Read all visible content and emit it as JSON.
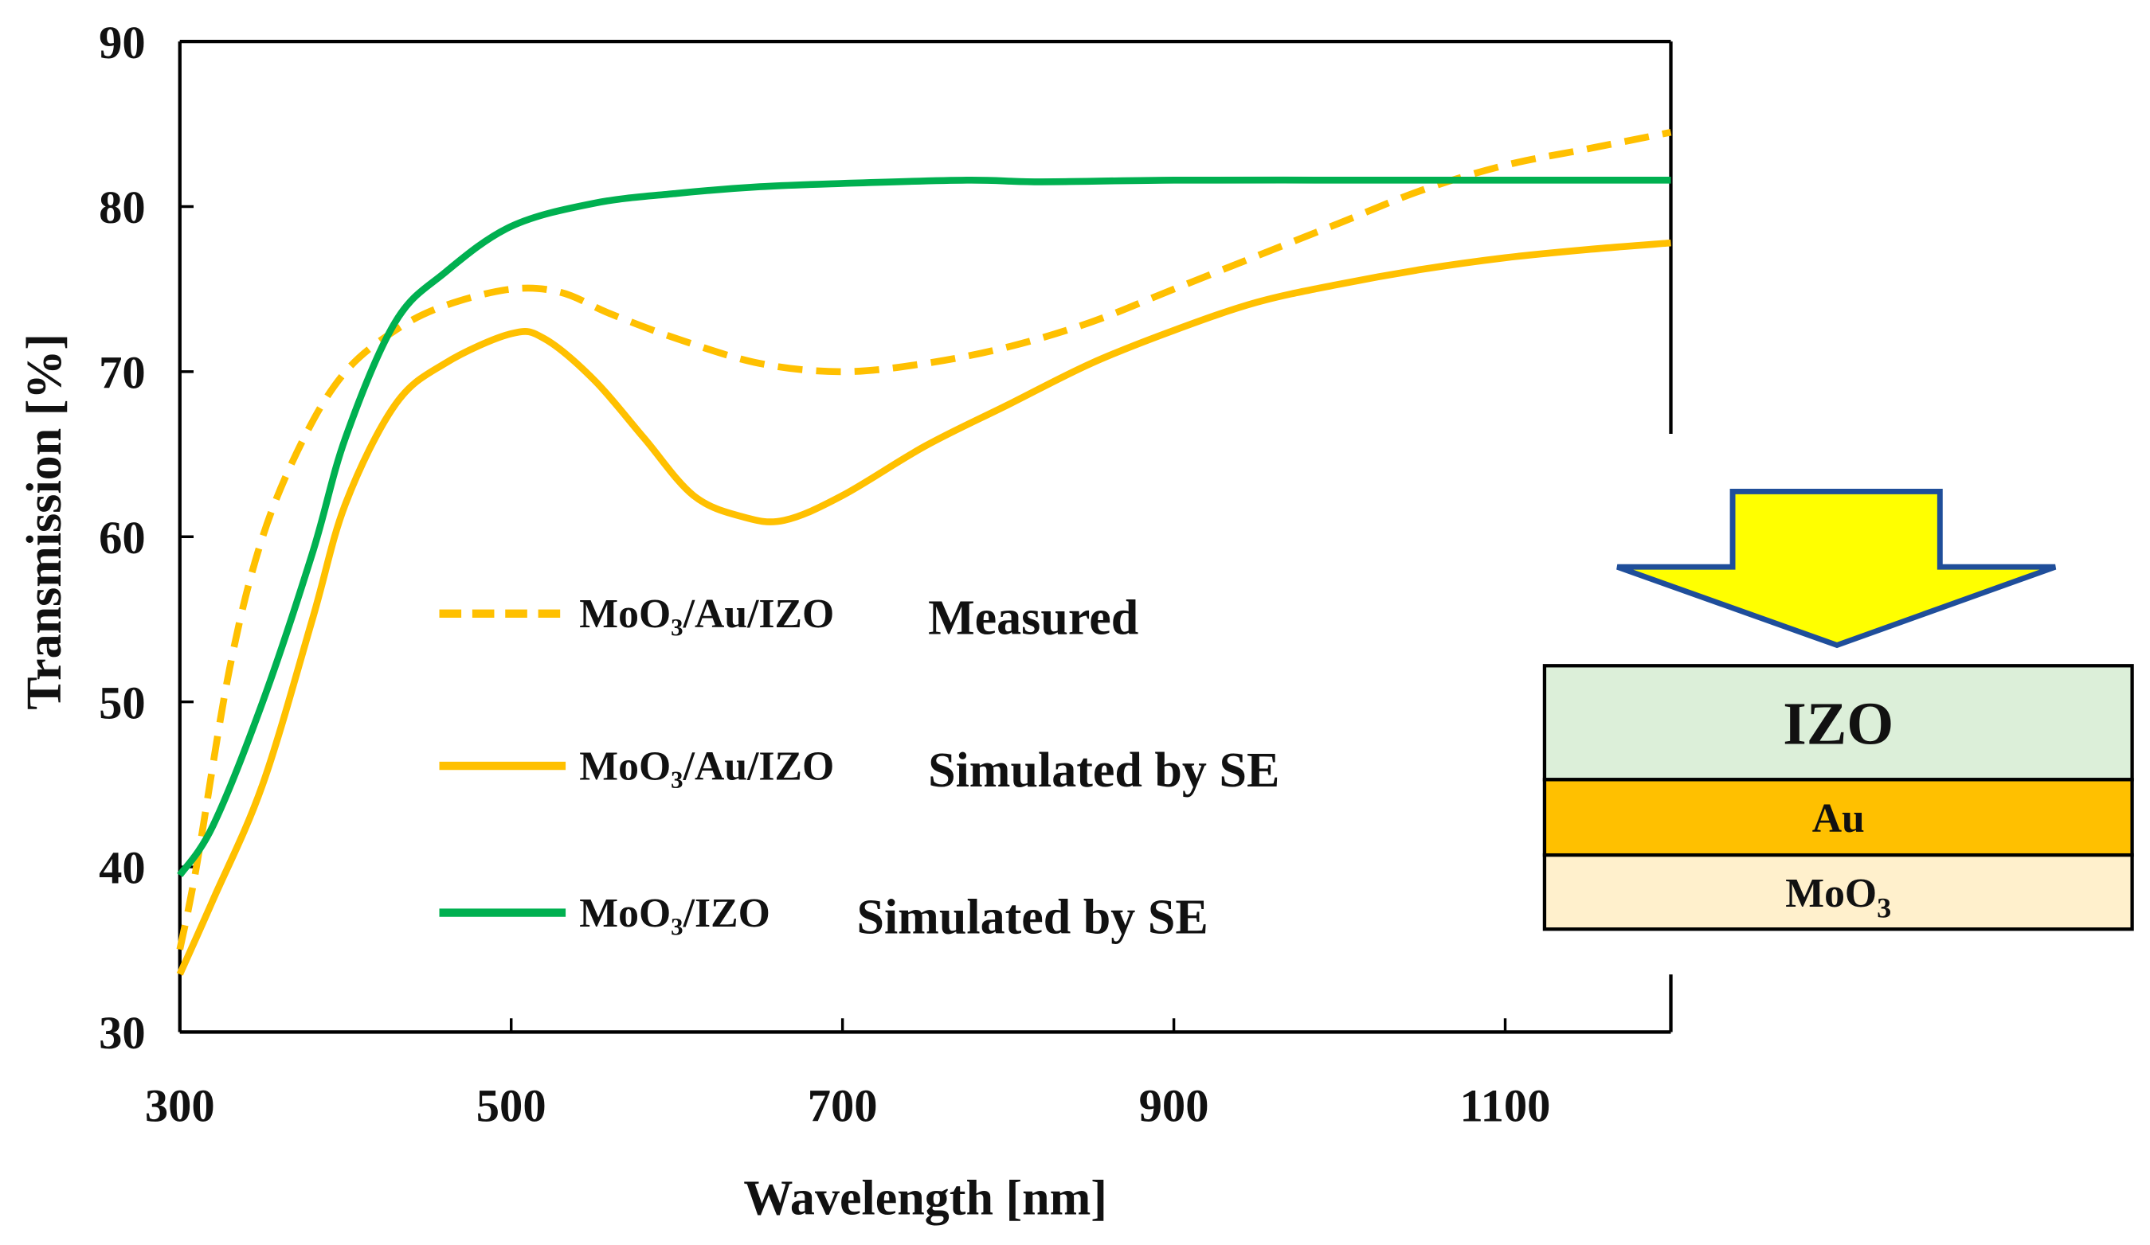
{
  "chart_data": {
    "type": "line",
    "xlabel": "Wavelength [nm]",
    "ylabel": "Transmission [%]",
    "xlim": [
      300,
      1200
    ],
    "ylim": [
      30,
      90
    ],
    "xticks": [
      300,
      500,
      700,
      900,
      1100
    ],
    "yticks": [
      30,
      40,
      50,
      60,
      70,
      80,
      90
    ],
    "grid": false,
    "legend_position": "center",
    "series": [
      {
        "name": "MoO₃/Au/IZO",
        "description": "Measured",
        "color": "#ffc000",
        "style": "dashed",
        "x": [
          300,
          310,
          330,
          350,
          375,
          400,
          430,
          460,
          500,
          530,
          560,
          600,
          650,
          700,
          750,
          800,
          850,
          900,
          950,
          1000,
          1050,
          1100,
          1150,
          1200
        ],
        "y": [
          35,
          40,
          52,
          60,
          66,
          70,
          72.5,
          74,
          75,
          74.8,
          73.5,
          72,
          70.5,
          70,
          70.5,
          71.5,
          73,
          75,
          77,
          79,
          81,
          82.5,
          83.5,
          84.5
        ]
      },
      {
        "name": "MoO₃/Au/IZO",
        "description": "Simulated by SE",
        "color": "#ffc000",
        "style": "solid",
        "x": [
          300,
          320,
          350,
          380,
          400,
          430,
          460,
          500,
          520,
          550,
          580,
          610,
          640,
          665,
          700,
          750,
          800,
          850,
          900,
          950,
          1000,
          1050,
          1100,
          1150,
          1200
        ],
        "y": [
          33.5,
          38,
          45,
          55,
          62,
          68,
          70.5,
          72.3,
          72,
          69.5,
          66,
          62.5,
          61.2,
          61,
          62.5,
          65.5,
          68,
          70.5,
          72.5,
          74.2,
          75.3,
          76.2,
          76.9,
          77.4,
          77.8
        ]
      },
      {
        "name": "MoO₃/IZO",
        "description": "Simulated by SE",
        "color": "#00b050",
        "style": "solid",
        "x": [
          300,
          320,
          350,
          380,
          400,
          430,
          460,
          500,
          550,
          600,
          650,
          700,
          775,
          820,
          900,
          1000,
          1100,
          1200
        ],
        "y": [
          39.5,
          42.5,
          50,
          59,
          66,
          73,
          76,
          78.8,
          80.2,
          80.8,
          81.2,
          81.4,
          81.6,
          81.5,
          81.6,
          81.6,
          81.6,
          81.6
        ]
      }
    ]
  },
  "inset": {
    "layers": [
      {
        "label": "IZO",
        "color": "#dcefd9"
      },
      {
        "label": "Au",
        "color": "#ffc000"
      },
      {
        "label": "MoO",
        "sub": "3",
        "color": "#fff0cc"
      }
    ],
    "arrow_fill": "#ffff00",
    "arrow_stroke": "#1f4e9a"
  }
}
